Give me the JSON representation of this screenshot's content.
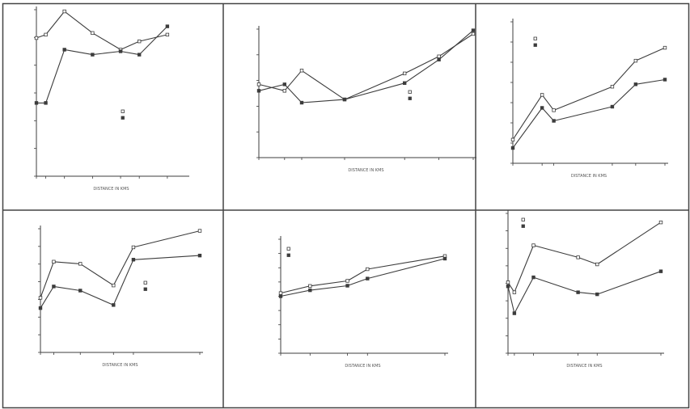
{
  "chart_data": [
    {
      "type": "line",
      "x": [
        0,
        1,
        3,
        6,
        9,
        11,
        14
      ],
      "series": [
        {
          "values": [
            0.83,
            0.85,
            0.99,
            0.86,
            0.76,
            0.81,
            0.85
          ]
        },
        {
          "values": [
            0.44,
            0.44,
            0.76,
            0.73,
            0.75,
            0.73,
            0.9
          ]
        }
      ],
      "xlim": [
        0,
        16
      ],
      "ylim": [
        0,
        1.0
      ],
      "xlabel": "DISTANCE IN KMS"
    },
    {
      "type": "line",
      "x": [
        0,
        1.5,
        2.5,
        5,
        8.5,
        10.5,
        12.5
      ],
      "series": [
        {
          "values": [
            2.28,
            2.08,
            2.71,
            1.81,
            2.62,
            3.15,
            3.85
          ]
        },
        {
          "values": [
            2.08,
            2.28,
            1.71,
            1.81,
            2.32,
            3.05,
            3.96
          ]
        }
      ],
      "xlim": [
        0,
        12.5
      ],
      "ylim": [
        0,
        4.0
      ],
      "xlabel": "DISTANCE IN KMS"
    },
    {
      "type": "line",
      "x": [
        0,
        2.5,
        3.5,
        8.5,
        10.5,
        13
      ],
      "series": [
        {
          "values": [
            0.2,
            0.58,
            0.45,
            0.65,
            0.87,
            0.98
          ]
        },
        {
          "values": [
            0.13,
            0.47,
            0.36,
            0.48,
            0.67,
            0.71
          ]
        }
      ],
      "xlim": [
        0,
        13
      ],
      "ylim": [
        0,
        1.2
      ],
      "xlabel": "DISTANCE IN KMS"
    },
    {
      "type": "line",
      "x": [
        0,
        1,
        3,
        5.5,
        7,
        12
      ],
      "series": [
        {
          "values": [
            0.53,
            0.88,
            0.86,
            0.65,
            1.02,
            1.18
          ]
        },
        {
          "values": [
            0.43,
            0.64,
            0.6,
            0.46,
            0.9,
            0.94
          ]
        }
      ],
      "xlim": [
        0,
        12
      ],
      "ylim": [
        0,
        1.2
      ],
      "xlabel": "DISTANCE IN KMS"
    },
    {
      "type": "line",
      "x": [
        0,
        2.2,
        5,
        6.5,
        12.3
      ],
      "series": [
        {
          "values": [
            2.11,
            2.36,
            2.54,
            2.95,
            3.41
          ]
        },
        {
          "values": [
            2.0,
            2.21,
            2.37,
            2.62,
            3.32
          ]
        }
      ],
      "xlim": [
        0,
        12.3
      ],
      "ylim": [
        0,
        4.0
      ],
      "xlabel": "DISTANCE IN KMS"
    },
    {
      "type": "line",
      "x": [
        0,
        0.5,
        2,
        5.5,
        7,
        12
      ],
      "series": [
        {
          "values": [
            0.71,
            0.61,
            1.08,
            0.96,
            0.89,
            1.31
          ]
        },
        {
          "values": [
            0.67,
            0.4,
            0.76,
            0.61,
            0.59,
            0.82
          ]
        }
      ],
      "xlim": [
        0,
        12
      ],
      "ylim": [
        0,
        1.4
      ],
      "xlabel": "DISTANCE IN KMS"
    }
  ]
}
